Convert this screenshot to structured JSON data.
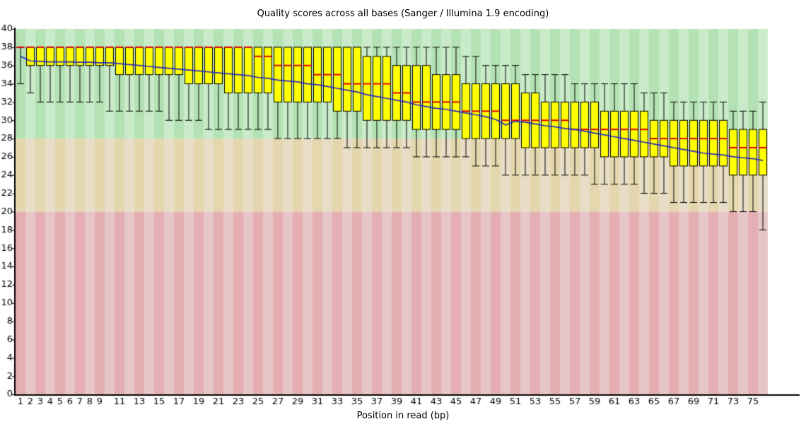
{
  "chart_data": {
    "type": "boxplot",
    "title": "Quality scores across all bases (Sanger / Illumina 1.9 encoding)",
    "xlabel": "Position in read (bp)",
    "ylim": [
      0,
      40
    ],
    "y_tick_step": 2,
    "n_positions": 76,
    "grid": false,
    "legend": "none",
    "zones": [
      {
        "name": "good-quality",
        "from": 28,
        "to": 40,
        "color_dark": "#b4e2b4",
        "color_light": "#c9ebc9"
      },
      {
        "name": "ok-quality",
        "from": 20,
        "to": 28,
        "color_dark": "#e5d7ad",
        "color_light": "#e8ddc6"
      },
      {
        "name": "bad-quality",
        "from": 0,
        "to": 20,
        "color_dark": "#e4aeb2",
        "color_light": "#e7c6c8"
      }
    ],
    "colors": {
      "box_fill": "#ffff00",
      "box_border": "#000000",
      "median": "#e00000",
      "mean_line": "#2929c0",
      "whisker": "#000000",
      "axis": "#000000",
      "text": "#000000"
    },
    "x_ticks": [
      "1",
      "2",
      "3",
      "4",
      "5",
      "6",
      "7",
      "8",
      "9",
      "",
      "11",
      "",
      "13",
      "",
      "15",
      "",
      "17",
      "",
      "19",
      "",
      "21",
      "",
      "23",
      "",
      "25",
      "",
      "27",
      "",
      "29",
      "",
      "31",
      "",
      "33",
      "",
      "35",
      "",
      "37",
      "",
      "39",
      "",
      "41",
      "",
      "43",
      "",
      "45",
      "",
      "47",
      "",
      "49",
      "",
      "51",
      "",
      "53",
      "",
      "55",
      "",
      "57",
      "",
      "59",
      "",
      "61",
      "",
      "63",
      "",
      "65",
      "",
      "67",
      "",
      "69",
      "",
      "71",
      "",
      "73",
      "",
      "75",
      ""
    ],
    "q1": [
      38,
      36,
      36,
      36,
      36,
      36,
      36,
      36,
      36,
      36,
      35,
      35,
      35,
      35,
      35,
      35,
      35,
      34,
      34,
      34,
      34,
      33,
      33,
      33,
      33,
      33,
      32,
      32,
      32,
      32,
      32,
      32,
      31,
      31,
      31,
      30,
      30,
      30,
      30,
      30,
      29,
      29,
      29,
      29,
      29,
      28,
      28,
      28,
      28,
      28,
      28,
      27,
      27,
      27,
      27,
      27,
      27,
      27,
      27,
      26,
      26,
      26,
      26,
      26,
      26,
      26,
      25,
      25,
      25,
      25,
      25,
      25,
      24,
      24,
      24,
      24
    ],
    "median": [
      38,
      38,
      38,
      38,
      38,
      38,
      38,
      38,
      38,
      38,
      38,
      38,
      38,
      38,
      38,
      38,
      38,
      38,
      38,
      38,
      38,
      38,
      38,
      38,
      37,
      37,
      36,
      36,
      36,
      36,
      35,
      35,
      35,
      34,
      34,
      34,
      34,
      34,
      33,
      33,
      32,
      32,
      32,
      32,
      32,
      31,
      31,
      31,
      31,
      30,
      30,
      30,
      30,
      30,
      30,
      30,
      29,
      29,
      29,
      29,
      29,
      29,
      29,
      29,
      28,
      28,
      28,
      28,
      28,
      28,
      28,
      28,
      27,
      27,
      27,
      27
    ],
    "q3": [
      38,
      38,
      38,
      38,
      38,
      38,
      38,
      38,
      38,
      38,
      38,
      38,
      38,
      38,
      38,
      38,
      38,
      38,
      38,
      38,
      38,
      38,
      38,
      38,
      38,
      38,
      38,
      38,
      38,
      38,
      38,
      38,
      38,
      38,
      38,
      37,
      37,
      37,
      36,
      36,
      36,
      36,
      35,
      35,
      35,
      34,
      34,
      34,
      34,
      34,
      34,
      33,
      33,
      32,
      32,
      32,
      32,
      32,
      32,
      31,
      31,
      31,
      31,
      31,
      30,
      30,
      30,
      30,
      30,
      30,
      30,
      30,
      29,
      29,
      29,
      29
    ],
    "p10": [
      34,
      33,
      32,
      32,
      32,
      32,
      32,
      32,
      32,
      31,
      31,
      31,
      31,
      31,
      31,
      30,
      30,
      30,
      30,
      29,
      29,
      29,
      29,
      29,
      29,
      29,
      28,
      28,
      28,
      28,
      28,
      28,
      28,
      27,
      27,
      27,
      27,
      27,
      27,
      27,
      26,
      26,
      26,
      26,
      26,
      26,
      25,
      25,
      25,
      24,
      24,
      24,
      24,
      24,
      24,
      24,
      24,
      24,
      23,
      23,
      23,
      23,
      23,
      22,
      22,
      22,
      21,
      21,
      21,
      21,
      21,
      21,
      20,
      20,
      20,
      18
    ],
    "p90": [
      38,
      38,
      38,
      38,
      38,
      38,
      38,
      38,
      38,
      38,
      38,
      38,
      38,
      38,
      38,
      38,
      38,
      38,
      38,
      38,
      38,
      38,
      38,
      38,
      38,
      38,
      38,
      38,
      38,
      38,
      38,
      38,
      38,
      38,
      38,
      38,
      38,
      38,
      38,
      38,
      38,
      38,
      38,
      38,
      38,
      37,
      37,
      36,
      36,
      36,
      36,
      35,
      35,
      35,
      35,
      35,
      34,
      34,
      34,
      34,
      34,
      34,
      34,
      33,
      33,
      33,
      32,
      32,
      32,
      32,
      32,
      32,
      31,
      31,
      31,
      32
    ],
    "mean": [
      37.0,
      36.5,
      36.45,
      36.4,
      36.4,
      36.4,
      36.35,
      36.35,
      36.3,
      36.3,
      36.2,
      36.1,
      36.0,
      35.9,
      35.8,
      35.7,
      35.6,
      35.5,
      35.4,
      35.3,
      35.2,
      35.1,
      35.0,
      34.9,
      34.7,
      34.6,
      34.4,
      34.3,
      34.2,
      34.0,
      33.9,
      33.7,
      33.5,
      33.3,
      33.1,
      32.8,
      32.6,
      32.4,
      32.2,
      32.0,
      31.7,
      31.5,
      31.3,
      31.2,
      31.0,
      30.8,
      30.6,
      30.4,
      30.1,
      29.5,
      29.9,
      29.8,
      29.6,
      29.4,
      29.3,
      29.1,
      29.0,
      28.8,
      28.6,
      28.4,
      28.2,
      28.0,
      27.8,
      27.6,
      27.4,
      27.2,
      27.0,
      26.8,
      26.6,
      26.4,
      26.3,
      26.2,
      26.0,
      25.9,
      25.8,
      25.6
    ]
  }
}
